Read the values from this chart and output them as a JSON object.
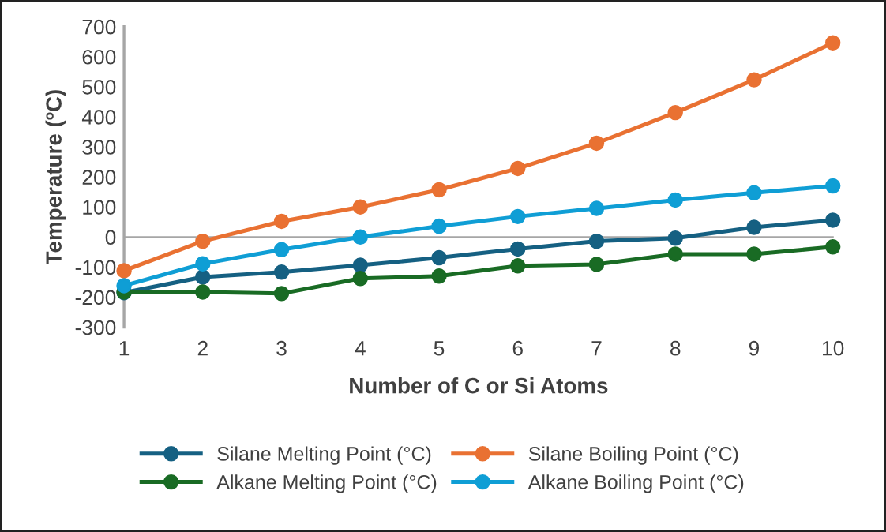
{
  "chart_data": {
    "type": "line",
    "xlabel": "Number of C or Si Atoms",
    "ylabel": "Temperature (ºC)",
    "x": [
      1,
      2,
      3,
      4,
      5,
      6,
      7,
      8,
      9,
      10
    ],
    "series": [
      {
        "name": "Silane Melting Point (°C)",
        "color": "#156082",
        "values": [
          -185,
          -133,
          -117,
          -94,
          -69,
          -40,
          -14,
          -4,
          32,
          56
        ]
      },
      {
        "name": "Silane Boiling Point (°C)",
        "color": "#e97132",
        "values": [
          -112,
          -14,
          52,
          100,
          157,
          228,
          312,
          414,
          523,
          646
        ]
      },
      {
        "name": "Alkane Melting Point (°C)",
        "color": "#196b24",
        "values": [
          -183,
          -183,
          -188,
          -138,
          -130,
          -96,
          -91,
          -57,
          -57,
          -33
        ]
      },
      {
        "name": "Alkane Boiling Point (°C)",
        "color": "#0f9ed5",
        "values": [
          -162,
          -89,
          -42,
          0,
          36,
          68,
          95,
          123,
          147,
          170
        ]
      }
    ],
    "xlim": [
      1,
      10
    ],
    "xticks": [
      1,
      2,
      3,
      4,
      5,
      6,
      7,
      8,
      9,
      10
    ],
    "ylim": [
      -300,
      700
    ],
    "yticks": [
      -300,
      -200,
      -100,
      0,
      100,
      200,
      300,
      400,
      500,
      600,
      700
    ],
    "legend": "bottom",
    "marker": "circle",
    "line_style": "solid"
  }
}
